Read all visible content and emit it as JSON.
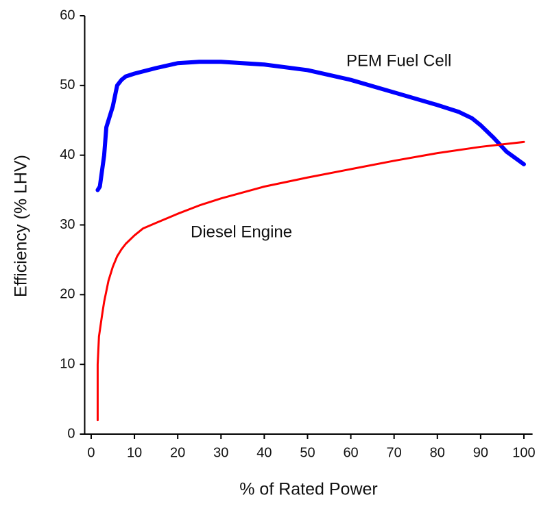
{
  "chart_data": {
    "type": "line",
    "xlabel": "% of Rated Power",
    "ylabel": "Efficiency  (% LHV)",
    "xlim": [
      -1.5,
      102
    ],
    "ylim": [
      0,
      60
    ],
    "xticks": [
      0,
      10,
      20,
      30,
      40,
      50,
      60,
      70,
      80,
      90,
      100
    ],
    "yticks": [
      0,
      10,
      20,
      30,
      40,
      50,
      60
    ],
    "grid": false,
    "series": [
      {
        "name": "PEM Fuel Cell",
        "color": "#0000ff",
        "x": [
          1.5,
          2,
          3,
          3.5,
          5,
          6,
          7,
          8,
          10,
          15,
          20,
          25,
          30,
          40,
          50,
          60,
          70,
          80,
          85,
          88,
          90,
          93,
          96,
          100
        ],
        "values": [
          35,
          35.5,
          40,
          44,
          47,
          50,
          50.8,
          51.3,
          51.7,
          52.5,
          53.2,
          53.4,
          53.4,
          53,
          52.2,
          50.8,
          49,
          47.2,
          46.2,
          45.3,
          44.3,
          42.5,
          40.5,
          38.7
        ]
      },
      {
        "name": "Diesel Engine",
        "color": "#ff0000",
        "x": [
          1.5,
          1.5,
          1.8,
          2.5,
          3,
          4,
          5,
          6,
          7,
          8,
          10,
          12,
          15,
          20,
          25,
          30,
          40,
          50,
          60,
          70,
          80,
          90,
          100
        ],
        "values": [
          2,
          10,
          14,
          17,
          19,
          22,
          24,
          25.5,
          26.5,
          27.3,
          28.5,
          29.5,
          30.3,
          31.6,
          32.8,
          33.8,
          35.5,
          36.8,
          38,
          39.2,
          40.3,
          41.2,
          41.9
        ]
      }
    ]
  }
}
